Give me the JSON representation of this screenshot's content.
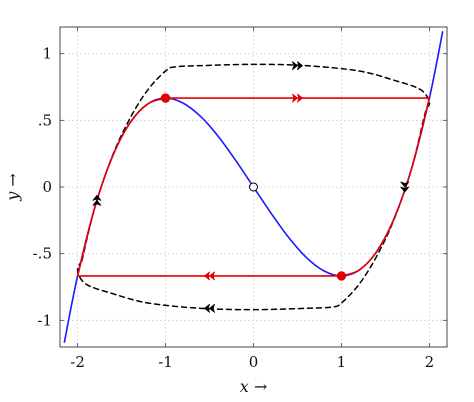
{
  "chart_data": {
    "type": "line",
    "title": "",
    "xlabel": "x →",
    "ylabel": "y →",
    "xlim": [
      -2.2,
      2.2
    ],
    "ylim": [
      -1.2,
      1.2
    ],
    "grid": true,
    "x_ticks": [
      -2,
      -1,
      0,
      1,
      2
    ],
    "x_tick_labels": [
      "-2",
      "-1",
      "0",
      "1",
      "2"
    ],
    "y_ticks": [
      -1,
      -0.5,
      0,
      0.5,
      1
    ],
    "y_tick_labels": [
      "-1",
      "-.5",
      "0",
      ".5",
      "1"
    ],
    "series": [
      {
        "style": "solid",
        "color": "#1a1aff",
        "x": [
          -2.15,
          -2.0,
          -1.8,
          -1.6,
          -1.4,
          -1.2,
          -1.0,
          -0.8,
          -0.6,
          -0.4,
          -0.2,
          0.0,
          0.2,
          0.4,
          0.6,
          0.8,
          1.0,
          1.2,
          1.4,
          1.6,
          1.8,
          2.0,
          2.15
        ],
        "y": [
          -1.163,
          -0.667,
          -0.144,
          0.235,
          0.485,
          0.624,
          0.667,
          0.629,
          0.528,
          0.379,
          0.197,
          0.0,
          -0.197,
          -0.379,
          -0.528,
          -0.629,
          -0.667,
          -0.624,
          -0.485,
          -0.235,
          0.144,
          0.667,
          1.163
        ]
      },
      {
        "style": "solid",
        "color": "#e60000",
        "x": [
          -2.0,
          -1.8,
          -1.6,
          -1.4,
          -1.2,
          -1.0,
          2.0,
          1.8,
          1.6,
          1.4,
          1.2,
          1.0,
          -2.0
        ],
        "y": [
          -0.667,
          -0.144,
          0.235,
          0.485,
          0.624,
          0.667,
          0.667,
          0.144,
          -0.235,
          -0.485,
          -0.624,
          -0.667,
          -0.667
        ]
      },
      {
        "style": "dashed",
        "color": "#000000",
        "x": [
          -1.95,
          -1.8,
          -1.6,
          -1.4,
          -1.2,
          -1.0,
          -0.9,
          -0.6,
          0.0,
          0.6,
          1.2,
          1.6,
          1.9,
          2.0,
          1.95,
          1.8,
          1.6,
          1.4,
          1.2,
          1.0,
          0.9,
          0.6,
          0.0,
          -0.6,
          -1.2,
          -1.6,
          -1.9,
          -2.0,
          -1.95
        ],
        "y": [
          -0.55,
          -0.144,
          0.24,
          0.52,
          0.73,
          0.87,
          0.9,
          0.91,
          0.92,
          0.91,
          0.87,
          0.8,
          0.73,
          0.63,
          0.55,
          0.144,
          -0.24,
          -0.52,
          -0.73,
          -0.87,
          -0.9,
          -0.91,
          -0.92,
          -0.91,
          -0.87,
          -0.8,
          -0.73,
          -0.63,
          -0.55
        ]
      }
    ],
    "markers": [
      {
        "x": -1.0,
        "y": 0.667,
        "shape": "filled-circle",
        "color": "#e60000"
      },
      {
        "x": 1.0,
        "y": -0.667,
        "shape": "filled-circle",
        "color": "#e60000"
      },
      {
        "x": 0.0,
        "y": 0.0,
        "shape": "open-circle",
        "color": "#000000"
      }
    ],
    "arrows": [
      {
        "x": 0.5,
        "y": 0.91,
        "direction": "right",
        "color": "#000000"
      },
      {
        "x": 0.5,
        "y": 0.667,
        "direction": "right",
        "color": "#e60000"
      },
      {
        "x": -0.5,
        "y": -0.667,
        "direction": "left",
        "color": "#e60000"
      },
      {
        "x": -0.5,
        "y": -0.91,
        "direction": "left",
        "color": "#000000"
      },
      {
        "x": -1.78,
        "y": -0.1,
        "direction": "up",
        "color": "#000000"
      },
      {
        "x": 1.72,
        "y": 0.0,
        "direction": "down",
        "color": "#000000"
      }
    ]
  }
}
